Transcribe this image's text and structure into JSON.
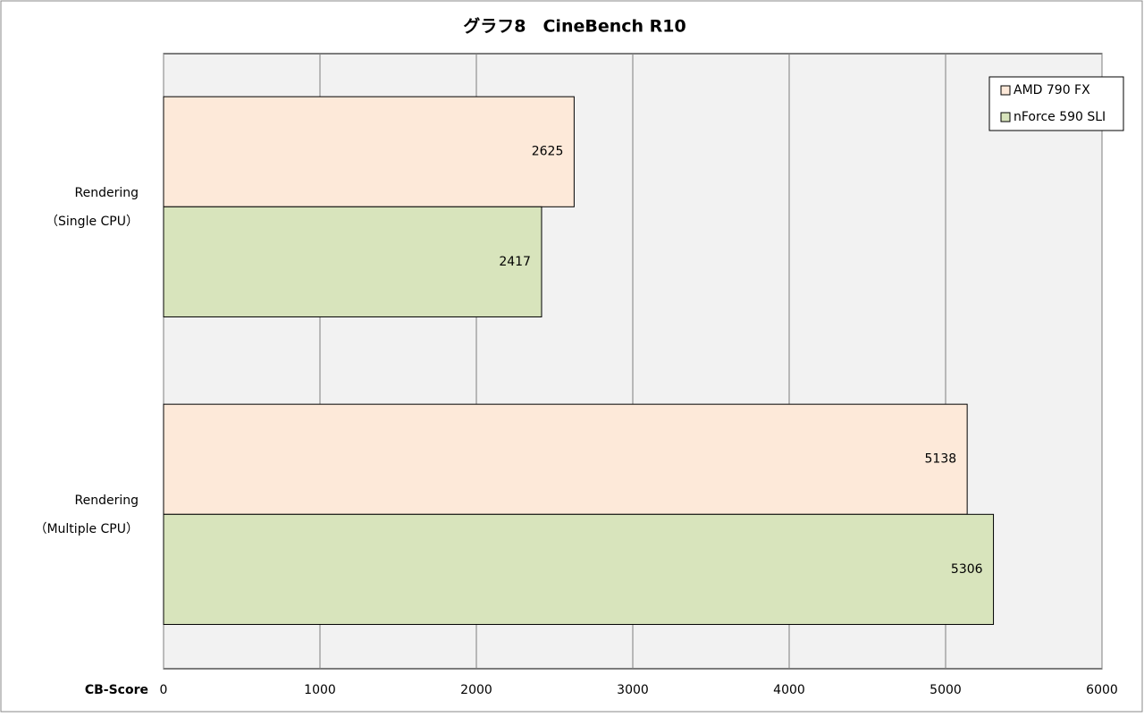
{
  "chart_data": {
    "type": "hbar",
    "title": "グラフ8　CineBench R10",
    "x_label": "CB-Score",
    "categories": [
      [
        "Rendering",
        "（Single CPU）"
      ],
      [
        "Rendering",
        "（Multiple CPU）"
      ]
    ],
    "series": [
      {
        "name": "AMD 790  FX",
        "color": "#fde9d9",
        "values": [
          2625,
          5138
        ]
      },
      {
        "name": "nForce 590  SLI",
        "color": "#d8e4bc",
        "values": [
          2417,
          5306
        ]
      }
    ],
    "xlim": [
      0,
      6000
    ],
    "xticks": [
      0,
      1000,
      2000,
      3000,
      4000,
      5000,
      6000
    ],
    "grid": true,
    "legend": "top-right"
  }
}
